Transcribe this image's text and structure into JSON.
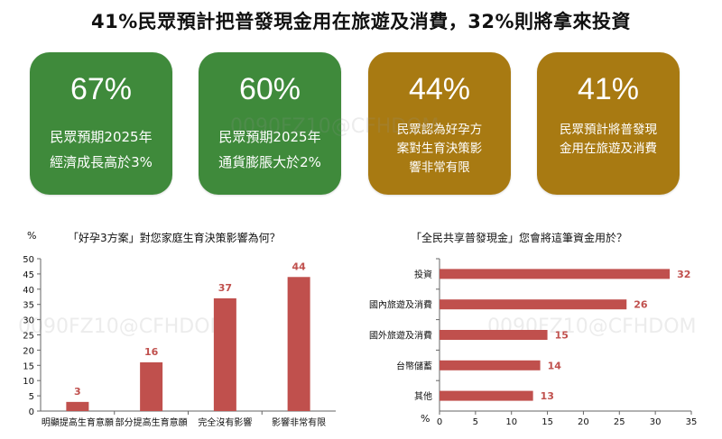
{
  "headline": "41%民眾預計把普發現金用在旅遊及消費，32%則將拿來投資",
  "cards": [
    {
      "pct": "67%",
      "desc": "民眾預期2025年\n經濟成長高於3%",
      "color": "#3f8a3b"
    },
    {
      "pct": "60%",
      "desc": "民眾預期2025年\n通貨膨脹大於2%",
      "color": "#3f8a3b"
    },
    {
      "pct": "44%",
      "desc": "民眾認為好孕方\n案對生育決策影\n響非常有限",
      "color": "#a87a12"
    },
    {
      "pct": "41%",
      "desc": "民眾預計將普發現\n金用在旅遊及消費",
      "color": "#a87a12"
    }
  ],
  "watermark": "0090FZ10@CFHDOM",
  "chart_data": [
    {
      "type": "bar",
      "title": "「好孕3方案」對您家庭生育決策影響為何？",
      "ylabel": "%",
      "categories": [
        "明顯提高生育意願",
        "部分提高生育意願",
        "完全沒有影響",
        "影響非常有限"
      ],
      "values": [
        3,
        16,
        37,
        44
      ],
      "ylim": [
        0,
        50
      ],
      "yticks": [
        0,
        5,
        10,
        15,
        20,
        25,
        30,
        35,
        40,
        45,
        50
      ],
      "color": "#c0504d"
    },
    {
      "type": "bar",
      "orientation": "horizontal",
      "title": "「全民共享普發現金」您會將這筆資金用於？",
      "xlabel": "%",
      "categories": [
        "投資",
        "國內旅遊及消費",
        "國外旅遊及消費",
        "台幣儲蓄",
        "其他"
      ],
      "values": [
        32,
        26,
        15,
        14,
        13
      ],
      "xlim": [
        0,
        35
      ],
      "xticks": [
        0,
        5,
        10,
        15,
        20,
        25,
        30,
        35
      ],
      "color": "#c0504d"
    }
  ]
}
